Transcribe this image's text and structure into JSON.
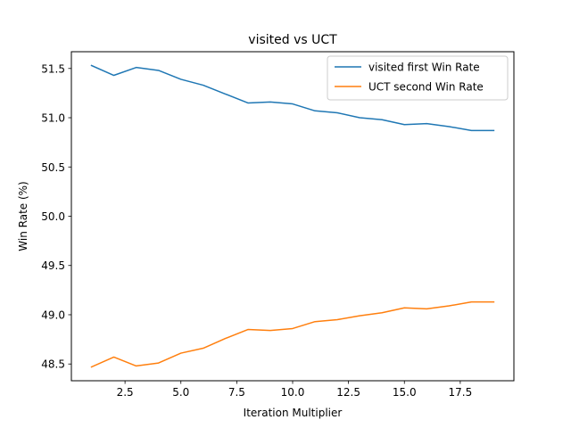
{
  "chart_data": {
    "type": "line",
    "title": "visited vs UCT",
    "xlabel": "Iteration Multiplier",
    "ylabel": "Win Rate (%)",
    "xlim": [
      0.1,
      19.9
    ],
    "ylim": [
      48.33,
      51.67
    ],
    "x_ticks": [
      2.5,
      5.0,
      7.5,
      10.0,
      12.5,
      15.0,
      17.5
    ],
    "x_tick_labels": [
      "2.5",
      "5.0",
      "7.5",
      "10.0",
      "12.5",
      "15.0",
      "17.5"
    ],
    "y_ticks": [
      48.5,
      49.0,
      49.5,
      50.0,
      50.5,
      51.0,
      51.5
    ],
    "y_tick_labels": [
      "48.5",
      "49.0",
      "49.5",
      "50.0",
      "50.5",
      "51.0",
      "51.5"
    ],
    "grid": false,
    "legend_position": "top-right",
    "x": [
      1,
      2,
      3,
      4,
      5,
      6,
      7,
      8,
      9,
      10,
      11,
      12,
      13,
      14,
      15,
      16,
      17,
      18,
      19
    ],
    "series": [
      {
        "name": "visited first Win Rate",
        "color": "#1f77b4",
        "values": [
          51.53,
          51.43,
          51.51,
          51.48,
          51.39,
          51.33,
          51.24,
          51.15,
          51.16,
          51.14,
          51.07,
          51.05,
          51.0,
          50.98,
          50.93,
          50.94,
          50.91,
          50.87,
          50.87
        ]
      },
      {
        "name": "UCT second Win Rate",
        "color": "#ff7f0e",
        "values": [
          48.47,
          48.57,
          48.48,
          48.51,
          48.61,
          48.66,
          48.76,
          48.85,
          48.84,
          48.86,
          48.93,
          48.95,
          48.99,
          49.02,
          49.07,
          49.06,
          49.09,
          49.13,
          49.13
        ]
      }
    ]
  }
}
